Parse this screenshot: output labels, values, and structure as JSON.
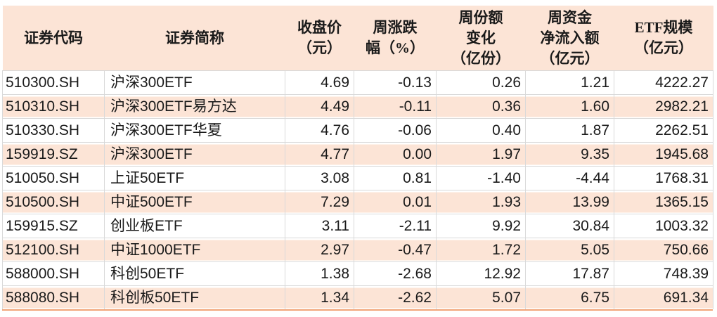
{
  "chart_data": {
    "type": "table",
    "columns": [
      {
        "id": "code",
        "header": "证券代码",
        "header_lines": [
          "证券代码"
        ],
        "align": "left"
      },
      {
        "id": "name",
        "header": "证券简称",
        "header_lines": [
          "证券简称"
        ],
        "align": "left"
      },
      {
        "id": "close_price_yuan",
        "header": "收盘价（元）",
        "header_lines": [
          "收盘价",
          "（元）"
        ],
        "align": "right"
      },
      {
        "id": "weekly_change_pct",
        "header": "周涨跌幅（%）",
        "header_lines": [
          "周涨跌",
          "幅（%）"
        ],
        "align": "right"
      },
      {
        "id": "weekly_share_change",
        "header": "周份额变化（亿份）",
        "header_lines": [
          "周份额",
          "变化",
          "（亿份）"
        ],
        "align": "right"
      },
      {
        "id": "weekly_net_inflow",
        "header": "周资金净流入额（亿元）",
        "header_lines": [
          "周资金",
          "净流入额",
          "（亿元）"
        ],
        "align": "right"
      },
      {
        "id": "etf_scale",
        "header": "ETF规模（亿元）",
        "header_lines": [
          "ETF规模",
          "（亿元）"
        ],
        "align": "right"
      }
    ],
    "rows": [
      [
        "510300.SH",
        "沪深300ETF",
        "4.69",
        "-0.13",
        "0.26",
        "1.21",
        "4222.27"
      ],
      [
        "510310.SH",
        "沪深300ETF易方达",
        "4.49",
        "-0.11",
        "0.36",
        "1.60",
        "2982.21"
      ],
      [
        "510330.SH",
        "沪深300ETF华夏",
        "4.76",
        "-0.06",
        "0.40",
        "1.87",
        "2262.51"
      ],
      [
        "159919.SZ",
        "沪深300ETF",
        "4.77",
        "0.00",
        "1.97",
        "9.35",
        "1945.68"
      ],
      [
        "510050.SH",
        "上证50ETF",
        "3.08",
        "0.81",
        "-1.40",
        "-4.44",
        "1768.31"
      ],
      [
        "510500.SH",
        "中证500ETF",
        "7.29",
        "0.01",
        "1.93",
        "13.99",
        "1365.15"
      ],
      [
        "159915.SZ",
        "创业板ETF",
        "3.11",
        "-2.11",
        "9.92",
        "30.84",
        "1003.32"
      ],
      [
        "512100.SH",
        "中证1000ETF",
        "2.97",
        "-0.47",
        "1.72",
        "5.05",
        "750.66"
      ],
      [
        "588000.SH",
        "科创50ETF",
        "1.38",
        "-2.68",
        "12.92",
        "17.87",
        "748.39"
      ],
      [
        "588080.SH",
        "科创板50ETF",
        "1.34",
        "-2.62",
        "5.07",
        "6.75",
        "691.34"
      ]
    ],
    "layout": {
      "stripe_pattern": "odd-rows-peach",
      "first_data_row_background": "white"
    }
  },
  "colors": {
    "page_bg": "#ffffff",
    "header_bg": "#fce4d6",
    "stripe_bg": "#fce4d6",
    "grid": "#d9d9d9",
    "text": "#1a1a1a",
    "bottom_accent": "#f1a478"
  }
}
